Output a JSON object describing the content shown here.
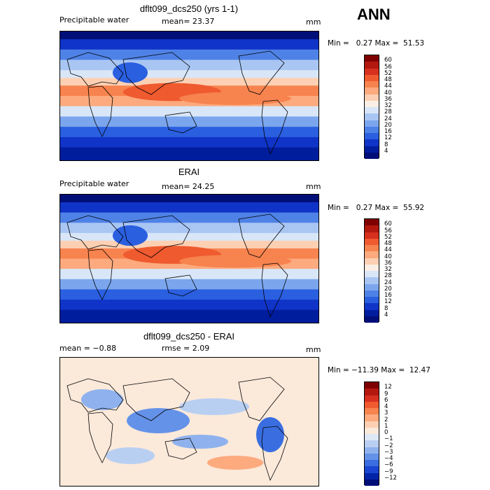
{
  "season": "ANN",
  "panels": [
    {
      "title": "dflt099_dcs250 (yrs 1-1)",
      "variable": "Precipitable water",
      "stat": "mean=  23.37",
      "units": "mm",
      "minmax": "Min =   0.27 Max =  51.53",
      "kind": "field"
    },
    {
      "title": "ERAI",
      "variable": "Precipitable water",
      "stat": "mean=  24.25",
      "units": "mm",
      "minmax": "Min =   0.27 Max =  55.92",
      "kind": "field"
    },
    {
      "title": "dflt099_dcs250 - ERAI",
      "variable": "mean =  −0.88",
      "stat": "rmse =   2.09",
      "units": "mm",
      "minmax": "Min = −11.39 Max =  12.47",
      "kind": "diff"
    }
  ],
  "colorbars": {
    "field": {
      "labels": [
        "60",
        "56",
        "52",
        "48",
        "44",
        "40",
        "36",
        "32",
        "28",
        "24",
        "20",
        "16",
        "12",
        "8",
        "4"
      ],
      "colors": [
        "#7f0000",
        "#b2180e",
        "#d7301f",
        "#ef5a2f",
        "#f7834f",
        "#fcaa7e",
        "#fdd0b3",
        "#fbeee4",
        "#d8e6f8",
        "#a9c6f3",
        "#7ba6ee",
        "#4f82e6",
        "#2a5fe0",
        "#1034c8",
        "#001d9e",
        "#000e78"
      ]
    },
    "diff": {
      "labels": [
        "12",
        "9",
        "6",
        "4",
        "3",
        "2",
        "1",
        "0",
        "−1",
        "−2",
        "−3",
        "−4",
        "−6",
        "−9",
        "−12"
      ],
      "colors": [
        "#7f0000",
        "#b2180e",
        "#d7301f",
        "#ef5a2f",
        "#f7834f",
        "#fcaa7e",
        "#fdd0b3",
        "#fbe9da",
        "#dde8f6",
        "#b9cff2",
        "#8fb2ee",
        "#6492e8",
        "#3a6ee0",
        "#1a45d0",
        "#0024a8",
        "#000e78"
      ]
    }
  }
}
